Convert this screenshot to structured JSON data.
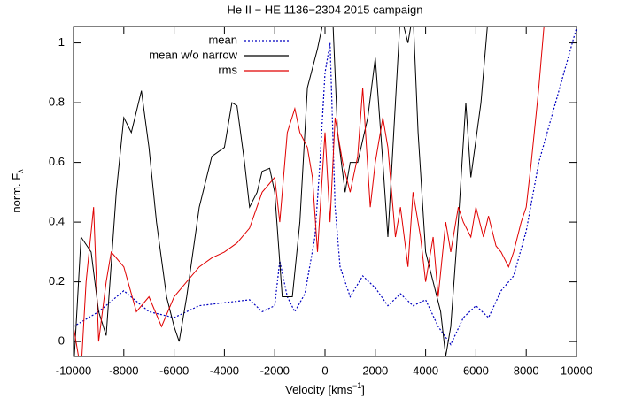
{
  "chart_data": {
    "type": "line",
    "title": "He II − HE 1136−2304 2015 campaign",
    "xlabel": [
      "Velocity [kms",
      "−1",
      "]"
    ],
    "ylabel": [
      "norm. F",
      "λ"
    ],
    "xlim": [
      -10000,
      10000
    ],
    "ylim": [
      -0.05,
      1.055
    ],
    "xticks": [
      -10000,
      -8000,
      -6000,
      -4000,
      -2000,
      0,
      2000,
      4000,
      6000,
      8000,
      10000
    ],
    "yticks": [
      0,
      0.2,
      0.4,
      0.6,
      0.8,
      1
    ],
    "legend": "top-center",
    "series": [
      {
        "name": "mean",
        "color": "#0000c0",
        "style": "dotted",
        "x": [
          -10000,
          -9000,
          -8000,
          -7000,
          -6000,
          -5000,
          -4000,
          -3000,
          -2500,
          -2000,
          -1800,
          -1500,
          -1200,
          -800,
          -400,
          -200,
          0,
          200,
          400,
          600,
          1000,
          1500,
          2000,
          2500,
          3000,
          3500,
          4000,
          4500,
          5000,
          5500,
          6000,
          6500,
          7000,
          7500,
          8000,
          8500,
          9000,
          9500,
          10000
        ],
        "values": [
          0.05,
          0.1,
          0.17,
          0.1,
          0.08,
          0.12,
          0.13,
          0.14,
          0.1,
          0.12,
          0.27,
          0.15,
          0.1,
          0.16,
          0.35,
          0.6,
          0.9,
          1.0,
          0.45,
          0.25,
          0.15,
          0.22,
          0.18,
          0.12,
          0.16,
          0.12,
          0.14,
          0.05,
          -0.01,
          0.08,
          0.12,
          0.08,
          0.17,
          0.22,
          0.37,
          0.6,
          0.75,
          0.9,
          1.05
        ]
      },
      {
        "name": "mean w/o narrow",
        "color": "#000000",
        "style": "solid",
        "x": [
          -10000,
          -9700,
          -9300,
          -9000,
          -8700,
          -8300,
          -8000,
          -7700,
          -7300,
          -7000,
          -6700,
          -6300,
          -6000,
          -5800,
          -5500,
          -5000,
          -4500,
          -4000,
          -3700,
          -3500,
          -3200,
          -3000,
          -2700,
          -2500,
          -2200,
          -2000,
          -1700,
          -1300,
          -1000,
          -700,
          -300,
          0,
          300,
          500,
          800,
          1000,
          1300,
          1700,
          2000,
          2300,
          2500,
          2800,
          3000,
          3300,
          3500,
          3700,
          4000,
          4300,
          4600,
          4800,
          5000,
          5300,
          5600,
          5800,
          6200,
          6500,
          7000
        ],
        "values": [
          -0.1,
          0.35,
          0.3,
          0.1,
          0.02,
          0.5,
          0.75,
          0.7,
          0.84,
          0.65,
          0.4,
          0.15,
          0.05,
          0.0,
          0.15,
          0.45,
          0.62,
          0.65,
          0.8,
          0.79,
          0.6,
          0.45,
          0.5,
          0.57,
          0.58,
          0.5,
          0.15,
          0.15,
          0.4,
          0.85,
          0.98,
          1.1,
          1.1,
          0.7,
          0.5,
          0.6,
          0.6,
          0.75,
          0.95,
          0.6,
          0.35,
          0.8,
          1.1,
          1.0,
          1.1,
          0.7,
          0.3,
          0.2,
          0.1,
          -0.05,
          0.05,
          0.4,
          0.8,
          0.55,
          0.8,
          1.1,
          1.3
        ]
      },
      {
        "name": "rms",
        "color": "#e00000",
        "style": "solid",
        "x": [
          -10000,
          -9700,
          -9500,
          -9200,
          -9000,
          -8700,
          -8500,
          -8000,
          -7500,
          -7000,
          -6500,
          -6000,
          -5500,
          -5000,
          -4500,
          -4000,
          -3500,
          -3000,
          -2500,
          -2000,
          -1800,
          -1500,
          -1200,
          -1000,
          -700,
          -500,
          -300,
          0,
          200,
          400,
          700,
          1000,
          1300,
          1500,
          1800,
          2000,
          2300,
          2500,
          2800,
          3000,
          3300,
          3500,
          3800,
          4000,
          4300,
          4500,
          4800,
          5000,
          5300,
          5500,
          5800,
          6000,
          6300,
          6500,
          6800,
          7000,
          7300,
          7500,
          7800,
          8000,
          8200,
          8500,
          8700,
          9000
        ],
        "values": [
          0.05,
          -0.1,
          0.2,
          0.45,
          0.0,
          0.2,
          0.3,
          0.25,
          0.1,
          0.15,
          0.05,
          0.15,
          0.2,
          0.25,
          0.28,
          0.3,
          0.33,
          0.38,
          0.5,
          0.55,
          0.4,
          0.7,
          0.78,
          0.7,
          0.65,
          0.55,
          0.3,
          0.7,
          0.4,
          0.75,
          0.6,
          0.5,
          0.62,
          0.85,
          0.45,
          0.6,
          0.75,
          0.65,
          0.35,
          0.45,
          0.25,
          0.5,
          0.35,
          0.2,
          0.35,
          0.15,
          0.4,
          0.3,
          0.45,
          0.4,
          0.35,
          0.45,
          0.35,
          0.42,
          0.32,
          0.3,
          0.25,
          0.3,
          0.4,
          0.45,
          0.6,
          0.85,
          1.05,
          1.2
        ]
      }
    ]
  }
}
